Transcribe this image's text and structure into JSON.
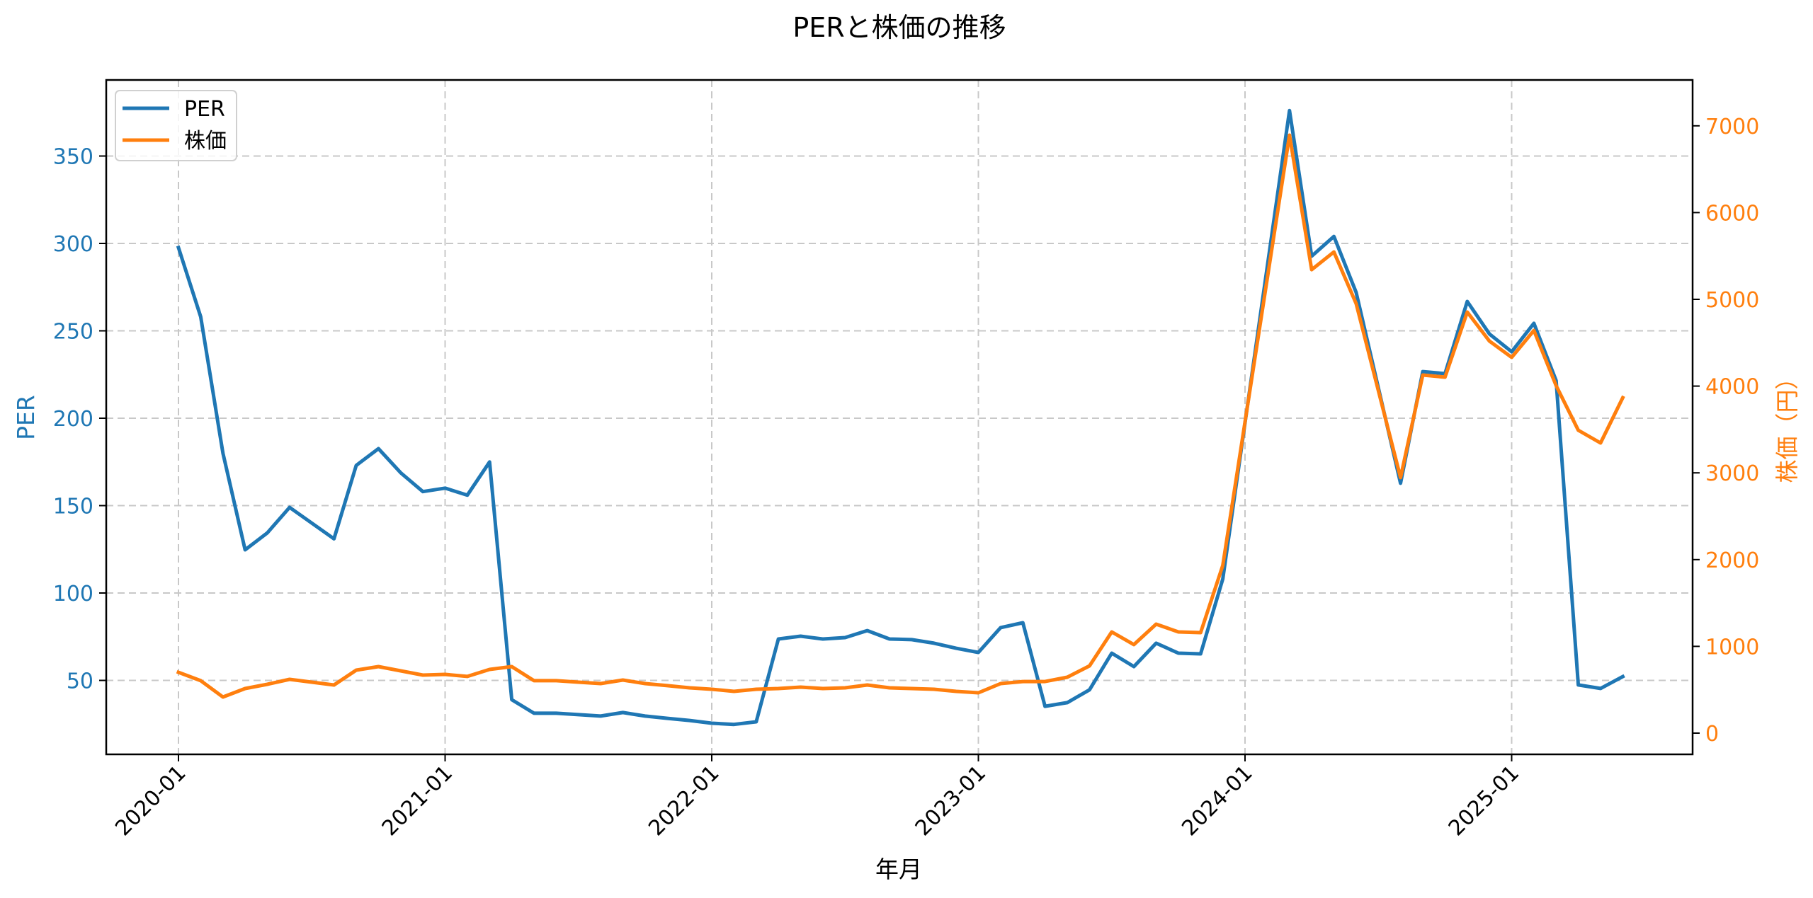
{
  "title": "PERと株価の推移",
  "legend": {
    "items": [
      {
        "label": "PER",
        "color": "#1f77b4"
      },
      {
        "label": "株価",
        "color": "#ff7f0e"
      }
    ]
  },
  "axes": {
    "x_label": "年月",
    "y_left_label": "PER",
    "y_right_label": "株価（円）",
    "x_ticks": [
      "2020-01",
      "2021-01",
      "2022-01",
      "2023-01",
      "2024-01",
      "2025-01"
    ],
    "y_left_ticks": [
      "50",
      "100",
      "150",
      "200",
      "250",
      "300",
      "350"
    ],
    "y_right_ticks": [
      "0",
      "1000",
      "2000",
      "3000",
      "4000",
      "5000",
      "6000",
      "7000"
    ]
  },
  "colors": {
    "per": "#1f77b4",
    "price": "#ff7f0e",
    "grid": "#c8c8c8"
  },
  "chart_data": {
    "type": "line",
    "title": "PERと株価の推移",
    "xlabel": "年月",
    "ylabel": "PER",
    "ylabel_right": "株価（円）",
    "ylim": [
      10,
      388
    ],
    "ylim_right": [
      -220,
      7500
    ],
    "grid": true,
    "legend_position": "upper left",
    "x": [
      "2020-01",
      "2020-02",
      "2020-03",
      "2020-04",
      "2020-05",
      "2020-06",
      "2020-08",
      "2020-09",
      "2020-10",
      "2020-11",
      "2020-12",
      "2021-01",
      "2021-02",
      "2021-03",
      "2021-04",
      "2021-05",
      "2021-06",
      "2021-07",
      "2021-08",
      "2021-09",
      "2021-10",
      "2021-11",
      "2021-12",
      "2022-01",
      "2022-02",
      "2022-03",
      "2022-04",
      "2022-05",
      "2022-06",
      "2022-07",
      "2022-08",
      "2022-09",
      "2022-10",
      "2022-11",
      "2022-12",
      "2023-01",
      "2023-02",
      "2023-03",
      "2023-04",
      "2023-05",
      "2023-06",
      "2023-07",
      "2023-08",
      "2023-09",
      "2023-10",
      "2023-11",
      "2023-12",
      "2024-03",
      "2024-04",
      "2024-05",
      "2024-06",
      "2024-08",
      "2024-09",
      "2024-10",
      "2024-11",
      "2024-12",
      "2025-01",
      "2025-02",
      "2025-03",
      "2025-04",
      "2025-05",
      "2025-06"
    ],
    "series": [
      {
        "name": "PER",
        "axis": "left",
        "color": "#1f77b4",
        "values": [
          297.6,
          258,
          180,
          124.7,
          134.4,
          149,
          131,
          173,
          182.6,
          168.8,
          158,
          160,
          156,
          175,
          39,
          31.2,
          31.2,
          30.4,
          29.6,
          31.6,
          29.6,
          28.3,
          27.1,
          25.5,
          24.8,
          26.3,
          73.7,
          75.3,
          73.7,
          74.5,
          78.5,
          73.7,
          73.3,
          71.3,
          68.4,
          66,
          80.2,
          83,
          35.2,
          37.3,
          44.6,
          65.6,
          57.9,
          71.3,
          65.6,
          65.2,
          108,
          376,
          292.7,
          304,
          272,
          162.8,
          226.7,
          225.5,
          266.8,
          248.2,
          238,
          254.3,
          221.5,
          47.4,
          45.4,
          52.2
        ]
      },
      {
        "name": "株価",
        "axis": "right",
        "color": "#ff7f0e",
        "values": [
          701,
          604,
          416,
          514,
          563,
          620,
          555,
          726,
          767,
          718,
          669,
          677,
          653,
          734,
          767,
          604,
          604,
          587,
          571,
          612,
          571,
          547,
          522,
          506,
          481,
          506,
          514,
          530,
          514,
          522,
          555,
          522,
          514,
          506,
          481,
          465,
          571,
          595,
          595,
          644,
          775,
          1166,
          1020,
          1256,
          1166,
          1158,
          1933,
          6892,
          5342,
          5546,
          4951,
          2945,
          4127,
          4103,
          4853,
          4519,
          4331,
          4641,
          4005,
          3491,
          3344,
          3866
        ]
      }
    ]
  }
}
